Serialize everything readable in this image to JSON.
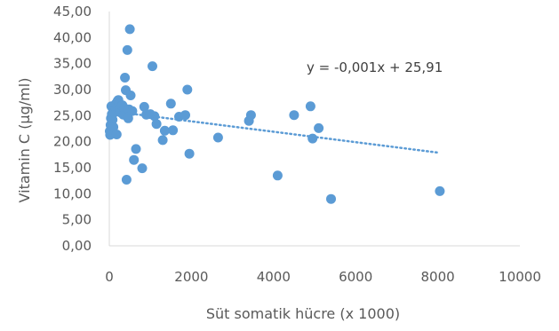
{
  "chart_data": {
    "type": "scatter",
    "xlabel": "Süt somatik hücre (x 1000)",
    "ylabel": "Vitamin C (µg/ml)",
    "xlim": [
      0,
      10000
    ],
    "ylim": [
      0,
      45
    ],
    "x_ticks": [
      "0",
      "2000",
      "4000",
      "6000",
      "8000",
      "10000"
    ],
    "y_ticks": [
      "0,00",
      "5,00",
      "10,00",
      "15,00",
      "20,00",
      "25,00",
      "30,00",
      "35,00",
      "40,00",
      "45,00"
    ],
    "grid": false,
    "marker_color": "#5B9BD5",
    "trendline": {
      "type": "linear",
      "style": "dotted",
      "color": "#5B9BD5",
      "slope": -0.001,
      "intercept": 25.91,
      "x_range": [
        0,
        8000
      ],
      "equation": "y = -0,001x + 25,91"
    },
    "series": [
      {
        "points": [
          [
            10,
            22.0
          ],
          [
            20,
            21.3
          ],
          [
            30,
            23.2
          ],
          [
            40,
            24.5
          ],
          [
            50,
            26.8
          ],
          [
            60,
            25.3
          ],
          [
            80,
            24.2
          ],
          [
            100,
            22.8
          ],
          [
            120,
            25.6
          ],
          [
            140,
            26.7
          ],
          [
            160,
            27.3
          ],
          [
            180,
            21.4
          ],
          [
            200,
            27.8
          ],
          [
            220,
            28.0
          ],
          [
            240,
            27.2
          ],
          [
            260,
            26.2
          ],
          [
            280,
            25.6
          ],
          [
            300,
            26.9
          ],
          [
            320,
            27.0
          ],
          [
            340,
            25.2
          ],
          [
            360,
            26.5
          ],
          [
            380,
            32.3
          ],
          [
            400,
            29.9
          ],
          [
            420,
            12.7
          ],
          [
            440,
            37.6
          ],
          [
            460,
            24.5
          ],
          [
            480,
            26.2
          ],
          [
            500,
            41.6
          ],
          [
            520,
            28.9
          ],
          [
            560,
            25.9
          ],
          [
            600,
            16.5
          ],
          [
            650,
            18.6
          ],
          [
            800,
            14.9
          ],
          [
            850,
            26.7
          ],
          [
            900,
            25.2
          ],
          [
            1000,
            25.3
          ],
          [
            1050,
            34.5
          ],
          [
            1100,
            24.9
          ],
          [
            1150,
            23.4
          ],
          [
            1300,
            20.3
          ],
          [
            1350,
            22.1
          ],
          [
            1500,
            27.3
          ],
          [
            1550,
            22.2
          ],
          [
            1700,
            24.8
          ],
          [
            1850,
            25.1
          ],
          [
            1900,
            30.0
          ],
          [
            1950,
            17.7
          ],
          [
            2650,
            20.8
          ],
          [
            3400,
            24.0
          ],
          [
            3450,
            25.1
          ],
          [
            4100,
            13.5
          ],
          [
            4500,
            25.1
          ],
          [
            4900,
            26.8
          ],
          [
            4950,
            20.6
          ],
          [
            5100,
            22.6
          ],
          [
            5400,
            9.0
          ],
          [
            8050,
            10.5
          ]
        ]
      }
    ]
  }
}
